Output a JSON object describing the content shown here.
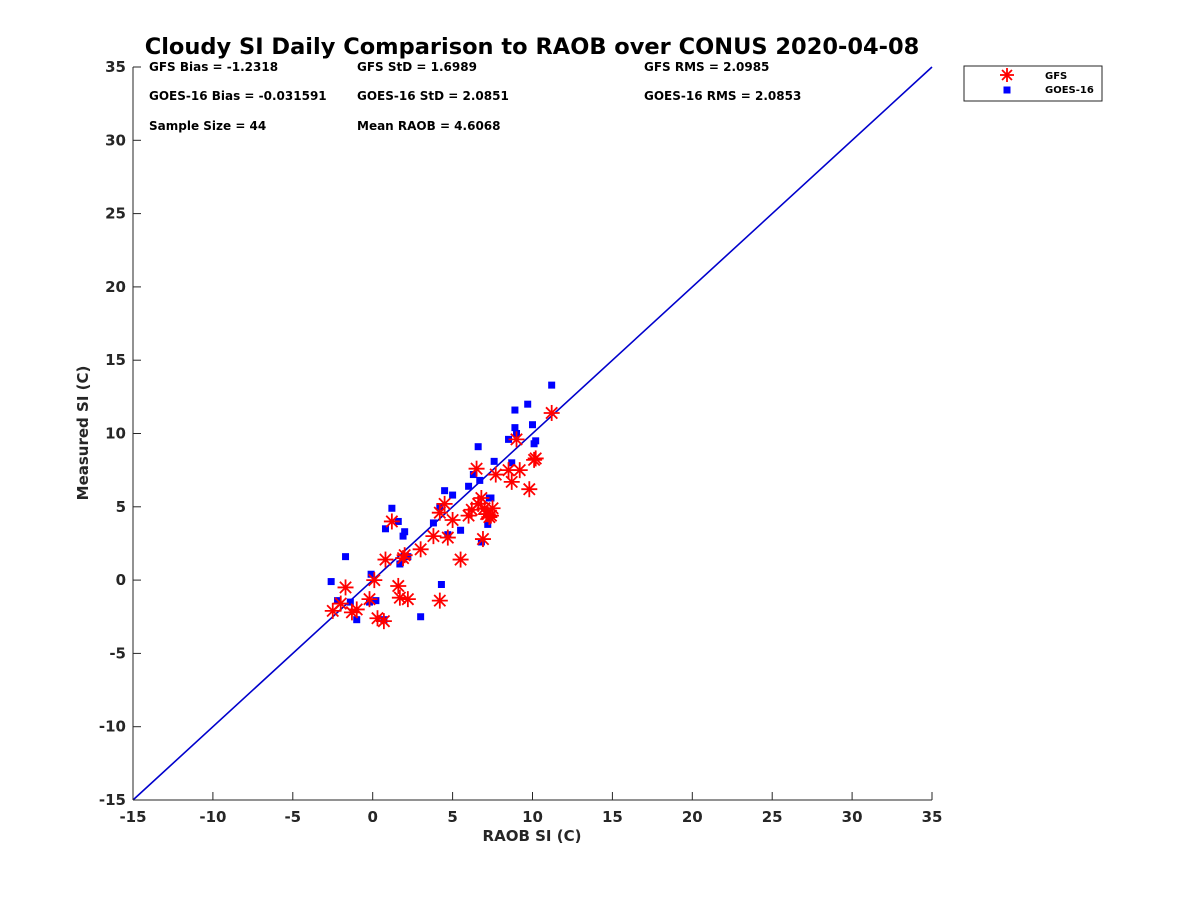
{
  "chart_data": {
    "type": "scatter",
    "title": "Cloudy SI Daily Comparison to RAOB over CONUS 2020-04-08",
    "xlabel": "RAOB SI (C)",
    "ylabel": "Measured SI (C)",
    "xlim": [
      -15,
      35
    ],
    "ylim": [
      -15,
      35
    ],
    "xticks": [
      -15,
      -10,
      -5,
      0,
      5,
      10,
      15,
      20,
      25,
      30,
      35
    ],
    "yticks": [
      -15,
      -10,
      -5,
      0,
      5,
      10,
      15,
      20,
      25,
      30,
      35
    ],
    "grid": false,
    "legend_position": "outside-top-right",
    "reference_line": {
      "x": [
        -15,
        35
      ],
      "y": [
        -15,
        35
      ],
      "color": "#0000CC"
    },
    "stats": [
      "GFS Bias = -1.2318",
      "GFS StD = 1.6989",
      "GFS RMS = 2.0985",
      "GOES-16 Bias = -0.031591",
      "GOES-16 StD = 2.0851",
      "GOES-16 RMS = 2.0853",
      "Sample Size = 44",
      "Mean RAOB = 4.6068"
    ],
    "series": [
      {
        "name": "GFS",
        "marker": "asterisk",
        "color": "#FF0000",
        "x": [
          -2.5,
          -2.0,
          -1.7,
          -1.3,
          -1.0,
          -0.2,
          0.1,
          0.3,
          0.7,
          0.8,
          1.2,
          1.6,
          1.7,
          1.9,
          2.0,
          2.2,
          3.0,
          3.8,
          4.2,
          4.2,
          4.5,
          4.7,
          5.0,
          5.5,
          6.0,
          6.2,
          6.5,
          6.6,
          6.8,
          6.9,
          7.0,
          7.1,
          7.2,
          7.3,
          7.4,
          7.5,
          7.7,
          8.5,
          8.7,
          9.0,
          9.2,
          9.8,
          10.1,
          10.2,
          11.2
        ],
        "y": [
          -2.1,
          -1.6,
          -0.5,
          -2.2,
          -2.0,
          -1.3,
          0.0,
          -2.6,
          -2.8,
          1.4,
          4.0,
          -0.4,
          -1.2,
          1.5,
          1.7,
          -1.3,
          2.1,
          3.0,
          -1.4,
          4.6,
          5.2,
          2.9,
          4.1,
          1.4,
          4.4,
          4.8,
          7.6,
          5.2,
          5.6,
          2.8,
          4.9,
          4.5,
          4.5,
          4.3,
          4.4,
          4.9,
          7.2,
          7.5,
          6.7,
          9.6,
          7.5,
          6.2,
          8.2,
          8.3,
          11.4
        ]
      },
      {
        "name": "GOES-16",
        "marker": "square",
        "color": "#0000FF",
        "x": [
          -2.6,
          -2.2,
          -1.7,
          -1.4,
          -1.0,
          -0.2,
          -0.1,
          0.2,
          0.7,
          0.8,
          1.2,
          1.6,
          1.7,
          1.9,
          2.0,
          2.2,
          3.0,
          3.8,
          4.2,
          4.3,
          4.5,
          4.7,
          5.0,
          5.5,
          6.0,
          6.3,
          6.6,
          6.7,
          6.8,
          7.2,
          7.3,
          7.4,
          7.6,
          8.5,
          8.7,
          8.9,
          8.9,
          9.0,
          9.7,
          10.0,
          10.1,
          10.2,
          11.2
        ],
        "y": [
          -0.1,
          -1.4,
          1.6,
          -1.5,
          -2.7,
          -1.5,
          0.4,
          -1.4,
          -2.7,
          3.5,
          4.9,
          4.0,
          1.1,
          3.0,
          3.3,
          1.6,
          -2.5,
          3.9,
          5.0,
          -0.3,
          6.1,
          3.1,
          5.8,
          3.4,
          6.4,
          7.2,
          9.1,
          6.8,
          2.6,
          3.8,
          5.6,
          5.6,
          8.1,
          9.6,
          8.0,
          11.6,
          10.4,
          10.0,
          12.0,
          10.6,
          9.3,
          9.5,
          13.3
        ]
      }
    ]
  }
}
